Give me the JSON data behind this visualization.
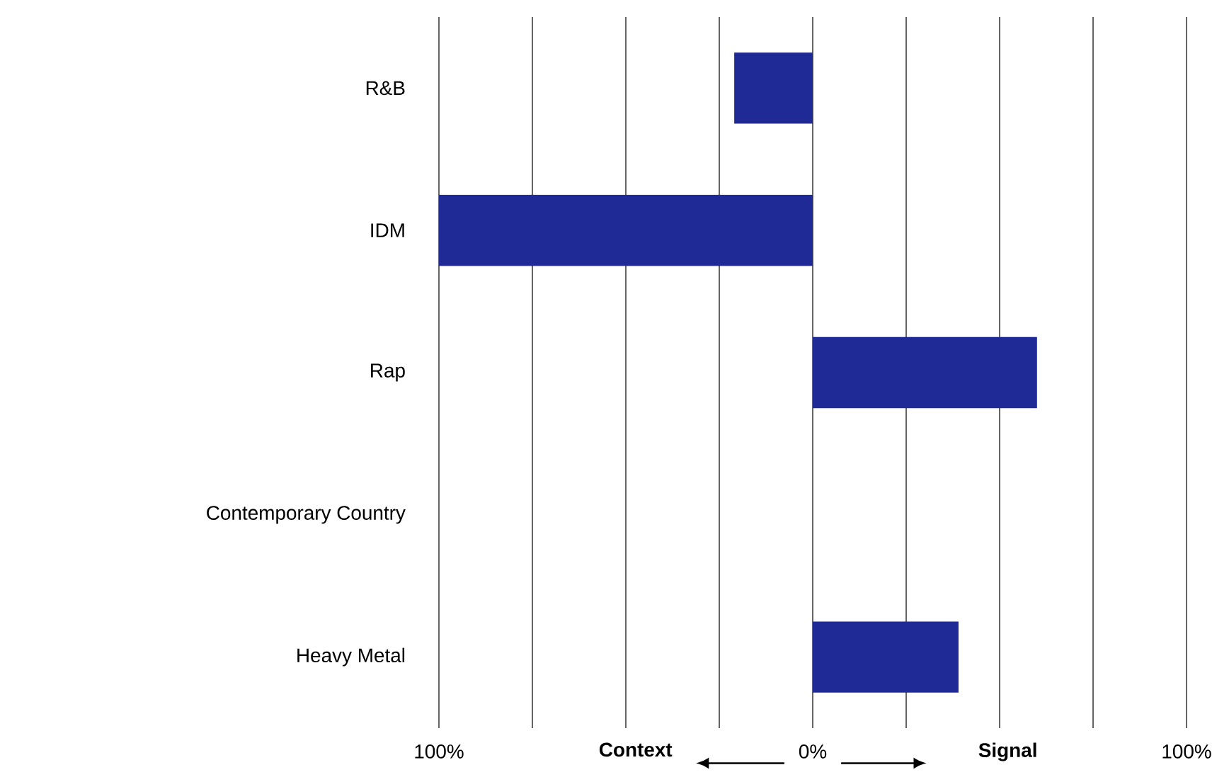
{
  "chart_data": {
    "type": "bar",
    "orientation": "horizontal",
    "categories": [
      "R&B",
      "IDM",
      "Rap",
      "Contemporary Country",
      "Heavy Metal"
    ],
    "values": [
      -21,
      -100,
      60,
      0,
      39
    ],
    "color": "#1f2a96",
    "xlim": [
      -100,
      100
    ],
    "xticks": [
      {
        "value": -100,
        "label": "100%"
      },
      {
        "value": -75,
        "label": null
      },
      {
        "value": -50,
        "label": null
      },
      {
        "value": -25,
        "label": null
      },
      {
        "value": 0,
        "label": "0%"
      },
      {
        "value": 25,
        "label": null
      },
      {
        "value": 50,
        "label": null
      },
      {
        "value": 75,
        "label": null
      },
      {
        "value": 100,
        "label": "100%"
      }
    ],
    "grid": "x",
    "annotations": [
      "**Context**",
      "**Signal**"
    ]
  }
}
